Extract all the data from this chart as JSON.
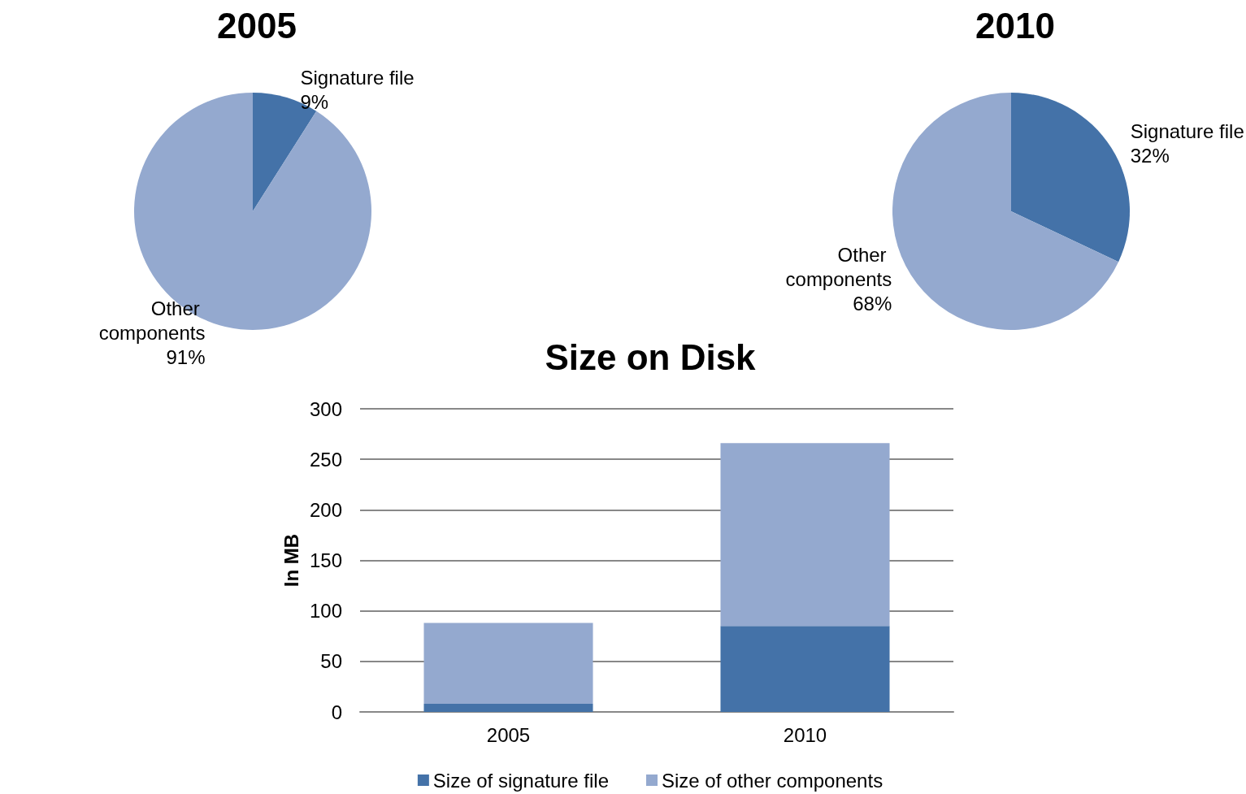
{
  "chart_data": [
    {
      "type": "pie",
      "title": "2005",
      "categories": [
        "Signature file",
        "Other components"
      ],
      "values": [
        9,
        91
      ],
      "colors": [
        "#4472a8",
        "#94a9cf"
      ],
      "value_labels": [
        "9%",
        "91%"
      ]
    },
    {
      "type": "pie",
      "title": "2010",
      "categories": [
        "Signature file",
        "Other components"
      ],
      "values": [
        32,
        68
      ],
      "colors": [
        "#4472a8",
        "#94a9cf"
      ],
      "value_labels": [
        "32%",
        "68%"
      ]
    },
    {
      "type": "bar",
      "title": "Size on Disk",
      "ylabel": "In MB",
      "categories": [
        "2005",
        "2010"
      ],
      "stacked": true,
      "series": [
        {
          "name": "Size of signature file",
          "color": "#4472a8",
          "values": [
            8,
            85
          ]
        },
        {
          "name": "Size of other components",
          "color": "#94a9cf",
          "values": [
            80,
            181
          ]
        }
      ],
      "ylim": [
        0,
        300
      ],
      "yticks": [
        0,
        50,
        100,
        150,
        200,
        250,
        300
      ],
      "grid": "y",
      "legend": "bottom"
    }
  ]
}
